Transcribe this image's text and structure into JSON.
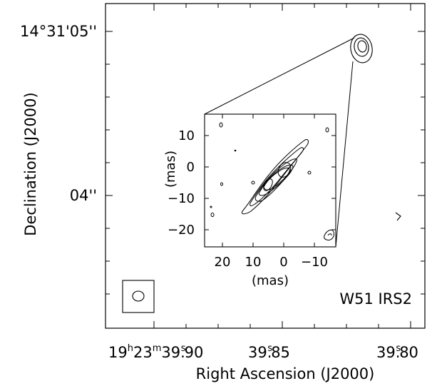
{
  "figure": {
    "title_label": "W51 IRS2",
    "colors": {
      "line": "#000000",
      "background": "#ffffff"
    },
    "x_axis": {
      "label": "Right Ascension (J2000)",
      "ticks": [
        {
          "prefix": "19",
          "h": "h",
          "p2": "23",
          "m": "m",
          "p3": "39.",
          "s": "s",
          "p4": "90"
        },
        {
          "p3": "39.",
          "s": "s",
          "p4": "85"
        },
        {
          "p3": "39.",
          "s": "s",
          "p4": "80"
        }
      ]
    },
    "y_axis": {
      "label": "Declination (J2000)",
      "ticks": [
        {
          "text": "14°31'05''"
        },
        {
          "text": "04''"
        }
      ]
    },
    "inset": {
      "x_label": "(mas)",
      "y_label": "(mas)",
      "x_ticks": [
        "20",
        "10",
        "0",
        "−10"
      ],
      "y_ticks": [
        "10",
        "0",
        "−10",
        "−20"
      ]
    },
    "beam_symbol": "restoring-beam-icon"
  }
}
